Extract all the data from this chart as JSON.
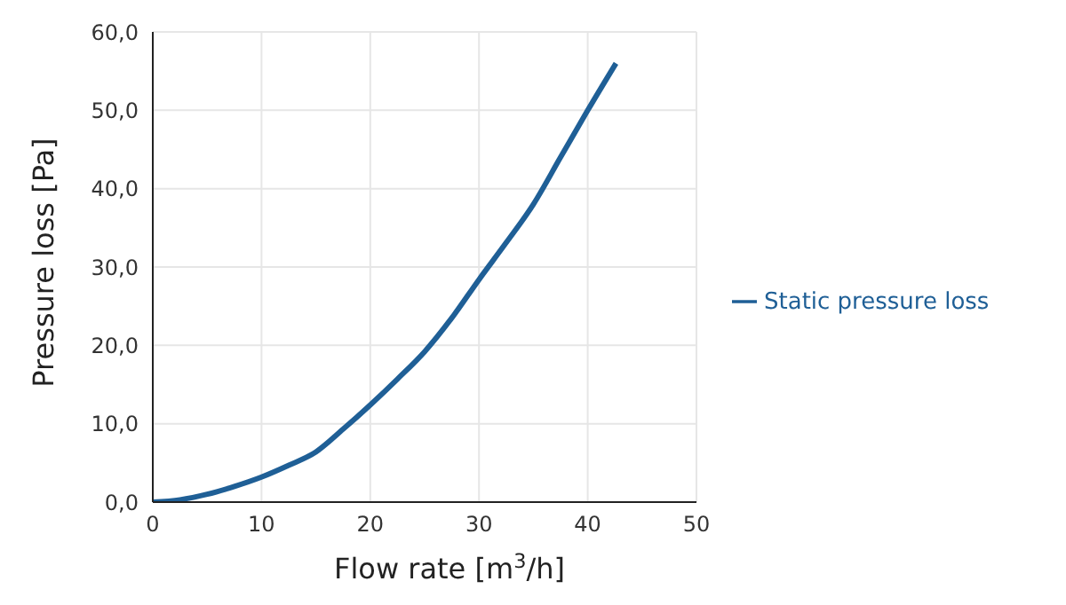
{
  "chart_data": {
    "type": "line",
    "xlabel": "Flow rate [m$^{3}$/h]",
    "ylabel": "Pressure loss [Pa]",
    "x": [
      0,
      2.5,
      5,
      7.5,
      10,
      12.5,
      15,
      17.5,
      20,
      22.5,
      25,
      27.5,
      30,
      32.5,
      35,
      37.5,
      40,
      42.6
    ],
    "series": [
      {
        "name": "Static pressure loss",
        "color": "#1f5f96",
        "values": [
          0,
          0.3,
          1.0,
          2.0,
          3.2,
          4.7,
          6.4,
          9.3,
          12.4,
          15.7,
          19.2,
          23.5,
          28.4,
          33.1,
          38.0,
          44.0,
          50.0,
          56.0
        ]
      }
    ],
    "xlim": [
      0,
      50
    ],
    "xticks": [
      0,
      10,
      20,
      30,
      40,
      50
    ],
    "ylim": [
      0,
      60
    ],
    "yticks": [
      {
        "value": 0,
        "label": "0,0"
      },
      {
        "value": 10,
        "label": "10,0"
      },
      {
        "value": 20,
        "label": "20,0"
      },
      {
        "value": 30,
        "label": "30,0"
      },
      {
        "value": 40,
        "label": "40,0"
      },
      {
        "value": 50,
        "label": "50,0"
      },
      {
        "value": 60,
        "label": "60,0"
      }
    ],
    "grid": true,
    "legend": "right",
    "marker": "none",
    "line_style": "solid"
  }
}
